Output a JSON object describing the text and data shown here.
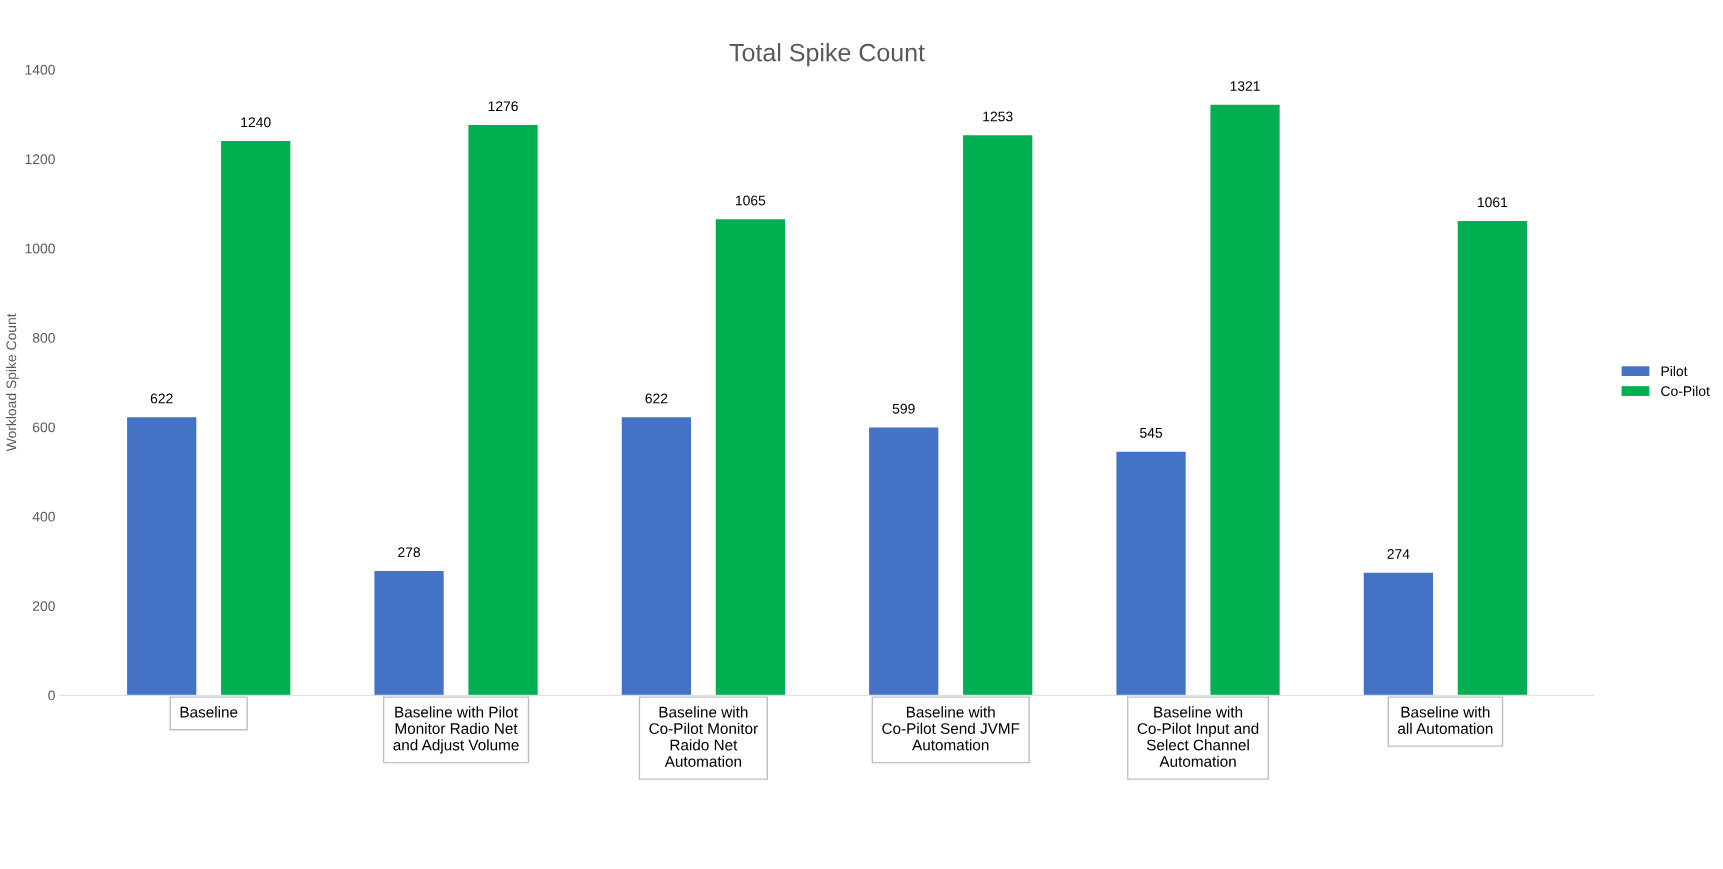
{
  "chart_data": {
    "type": "bar",
    "title": "Total Spike Count",
    "ylabel": "Workload Spike Count",
    "categories": [
      "Baseline",
      "Baseline with Pilot\nMonitor Radio Net\nand Adjust Volume",
      "Baseline with\nCo-Pilot Monitor\nRaido Net\nAutomation",
      "Baseline with\nCo-Pilot Send JVMF\nAutomation",
      "Baseline with\nCo-Pilot Input and\nSelect Channel\nAutomation",
      "Baseline with\nall Automation"
    ],
    "series": [
      {
        "name": "Pilot",
        "color": "#4472c4",
        "values": [
          622,
          278,
          622,
          599,
          545,
          274
        ]
      },
      {
        "name": "Co-Pilot",
        "color": "#00b050",
        "values": [
          1240,
          1276,
          1065,
          1253,
          1321,
          1061
        ]
      }
    ],
    "ylim": [
      0,
      1400
    ],
    "yticks": [
      0,
      200,
      400,
      600,
      800,
      1000,
      1200,
      1400
    ],
    "data_labels": true,
    "legend": "right",
    "grid": false
  }
}
